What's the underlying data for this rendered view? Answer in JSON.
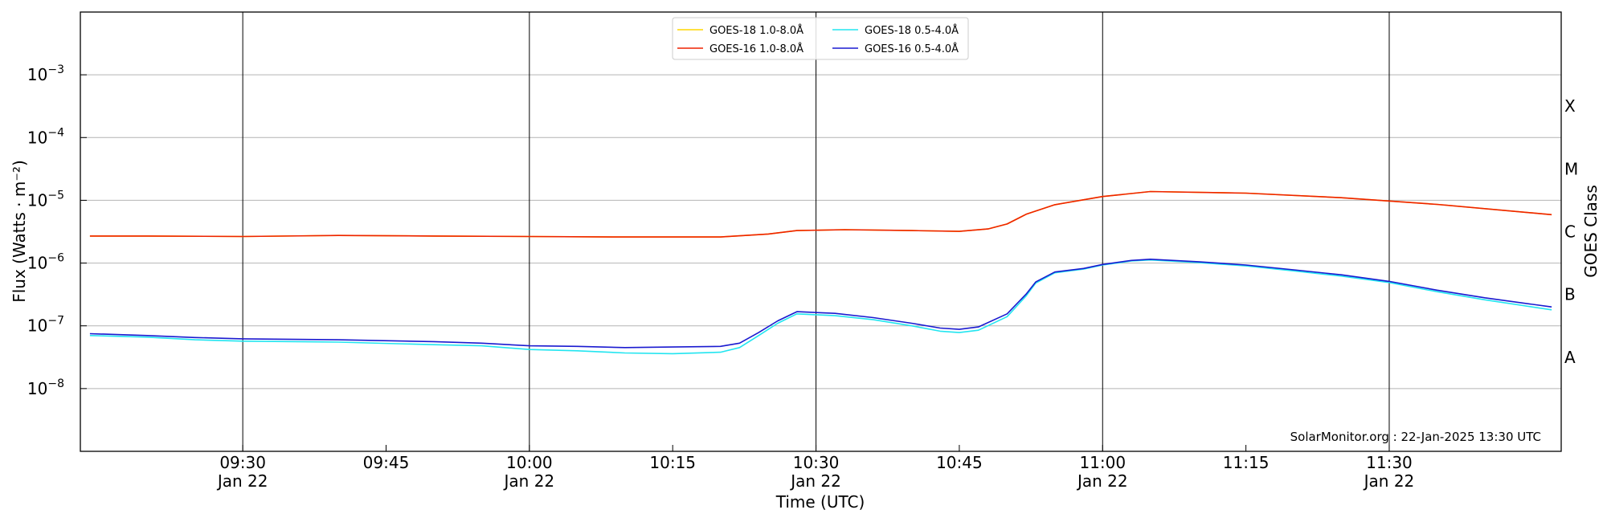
{
  "chart_data": {
    "type": "line",
    "xlabel": "Time (UTC)",
    "ylabel": "Flux (Watts · m⁻²)",
    "y2label": "GOES Class",
    "yscale": "log",
    "ylim": [
      1e-09,
      0.01
    ],
    "xlim": [
      "09:13",
      "11:48"
    ],
    "date": "Jan 22",
    "x_ticks": [
      {
        "t": "09:30",
        "label": "09:30",
        "date": "Jan 22",
        "major": true
      },
      {
        "t": "09:45",
        "label": "09:45",
        "date": "",
        "major": false
      },
      {
        "t": "10:00",
        "label": "10:00",
        "date": "Jan 22",
        "major": true
      },
      {
        "t": "10:15",
        "label": "10:15",
        "date": "",
        "major": false
      },
      {
        "t": "10:30",
        "label": "10:30",
        "date": "Jan 22",
        "major": true
      },
      {
        "t": "10:45",
        "label": "10:45",
        "date": "",
        "major": false
      },
      {
        "t": "11:00",
        "label": "11:00",
        "date": "Jan 22",
        "major": true
      },
      {
        "t": "11:15",
        "label": "11:15",
        "date": "",
        "major": false
      },
      {
        "t": "11:30",
        "label": "11:30",
        "date": "Jan 22",
        "major": true
      }
    ],
    "y_ticks": [
      {
        "value": 1e-08,
        "exp": "−8"
      },
      {
        "value": 1e-07,
        "exp": "−7"
      },
      {
        "value": 1e-06,
        "exp": "−6"
      },
      {
        "value": 1e-05,
        "exp": "−5"
      },
      {
        "value": 0.0001,
        "exp": "−4"
      },
      {
        "value": 0.001,
        "exp": "−3"
      }
    ],
    "goes_classes": [
      {
        "label": "A",
        "value": 3.16e-08
      },
      {
        "label": "B",
        "value": 3.16e-07
      },
      {
        "label": "C",
        "value": 3.16e-06
      },
      {
        "label": "M",
        "value": 3.16e-05
      },
      {
        "label": "X",
        "value": 0.000316
      }
    ],
    "grid": true,
    "legend_position": "top-center",
    "credit": "SolarMonitor.org : 22-Jan-2025 13:30 UTC",
    "series": [
      {
        "name": "GOES-18 1.0-8.0Å",
        "color": "#ffd700",
        "x": [
          "09:14",
          "09:20",
          "09:30",
          "09:40",
          "09:50",
          "10:00",
          "10:10",
          "10:20",
          "10:25",
          "10:28",
          "10:33",
          "10:40",
          "10:45",
          "10:48",
          "10:50",
          "10:52",
          "10:55",
          "11:00",
          "11:05",
          "11:15",
          "11:25",
          "11:35",
          "11:47"
        ],
        "values": [
          2.7e-06,
          2.7e-06,
          2.65e-06,
          2.75e-06,
          2.7e-06,
          2.65e-06,
          2.6e-06,
          2.6e-06,
          2.9e-06,
          3.3e-06,
          3.4e-06,
          3.3e-06,
          3.2e-06,
          3.5e-06,
          4.2e-06,
          6e-06,
          8.5e-06,
          1.15e-05,
          1.38e-05,
          1.3e-05,
          1.1e-05,
          8.6e-06,
          5.9e-06
        ]
      },
      {
        "name": "GOES-16 1.0-8.0Å",
        "color": "#ee2200",
        "x": [
          "09:14",
          "09:20",
          "09:30",
          "09:40",
          "09:50",
          "10:00",
          "10:10",
          "10:20",
          "10:25",
          "10:28",
          "10:33",
          "10:40",
          "10:45",
          "10:48",
          "10:50",
          "10:52",
          "10:55",
          "11:00",
          "11:05",
          "11:15",
          "11:25",
          "11:35",
          "11:47"
        ],
        "values": [
          2.7e-06,
          2.7e-06,
          2.65e-06,
          2.75e-06,
          2.7e-06,
          2.65e-06,
          2.6e-06,
          2.6e-06,
          2.9e-06,
          3.3e-06,
          3.4e-06,
          3.3e-06,
          3.2e-06,
          3.5e-06,
          4.2e-06,
          6e-06,
          8.5e-06,
          1.15e-05,
          1.38e-05,
          1.3e-05,
          1.1e-05,
          8.6e-06,
          5.9e-06
        ]
      },
      {
        "name": "GOES-18 0.5-4.0Å",
        "color": "#22e5f0",
        "x": [
          "09:14",
          "09:20",
          "09:25",
          "09:30",
          "09:40",
          "09:50",
          "09:55",
          "10:00",
          "10:05",
          "10:10",
          "10:15",
          "10:20",
          "10:22",
          "10:24",
          "10:26",
          "10:28",
          "10:32",
          "10:36",
          "10:40",
          "10:43",
          "10:45",
          "10:47",
          "10:50",
          "10:52",
          "10:53",
          "10:55",
          "10:58",
          "11:00",
          "11:03",
          "11:05",
          "11:10",
          "11:15",
          "11:20",
          "11:25",
          "11:30",
          "11:35",
          "11:40",
          "11:47"
        ],
        "values": [
          7e-08,
          6.6e-08,
          6e-08,
          5.7e-08,
          5.5e-08,
          5e-08,
          4.8e-08,
          4.2e-08,
          4e-08,
          3.7e-08,
          3.6e-08,
          3.8e-08,
          4.5e-08,
          7e-08,
          1.1e-07,
          1.55e-07,
          1.45e-07,
          1.25e-07,
          1e-07,
          8.2e-08,
          7.8e-08,
          8.5e-08,
          1.4e-07,
          3e-07,
          4.8e-07,
          7e-07,
          8e-07,
          9.3e-07,
          1.08e-06,
          1.12e-06,
          1.02e-06,
          9e-07,
          7.5e-07,
          6.2e-07,
          4.9e-07,
          3.5e-07,
          2.6e-07,
          1.8e-07
        ]
      },
      {
        "name": "GOES-16 0.5-4.0Å",
        "color": "#1a1ad0",
        "x": [
          "09:14",
          "09:20",
          "09:25",
          "09:30",
          "09:40",
          "09:50",
          "09:55",
          "10:00",
          "10:05",
          "10:10",
          "10:15",
          "10:20",
          "10:22",
          "10:24",
          "10:26",
          "10:28",
          "10:32",
          "10:36",
          "10:40",
          "10:43",
          "10:45",
          "10:47",
          "10:50",
          "10:52",
          "10:53",
          "10:55",
          "10:58",
          "11:00",
          "11:03",
          "11:05",
          "11:10",
          "11:15",
          "11:20",
          "11:25",
          "11:30",
          "11:35",
          "11:40",
          "11:47"
        ],
        "values": [
          7.5e-08,
          7e-08,
          6.5e-08,
          6.2e-08,
          6e-08,
          5.6e-08,
          5.3e-08,
          4.8e-08,
          4.7e-08,
          4.5e-08,
          4.6e-08,
          4.7e-08,
          5.3e-08,
          7.8e-08,
          1.2e-07,
          1.68e-07,
          1.58e-07,
          1.35e-07,
          1.1e-07,
          9.2e-08,
          8.8e-08,
          9.6e-08,
          1.55e-07,
          3.2e-07,
          5e-07,
          7.2e-07,
          8.2e-07,
          9.5e-07,
          1.1e-06,
          1.15e-06,
          1.05e-06,
          9.3e-07,
          7.8e-07,
          6.5e-07,
          5.1e-07,
          3.7e-07,
          2.8e-07,
          2e-07
        ]
      }
    ]
  }
}
